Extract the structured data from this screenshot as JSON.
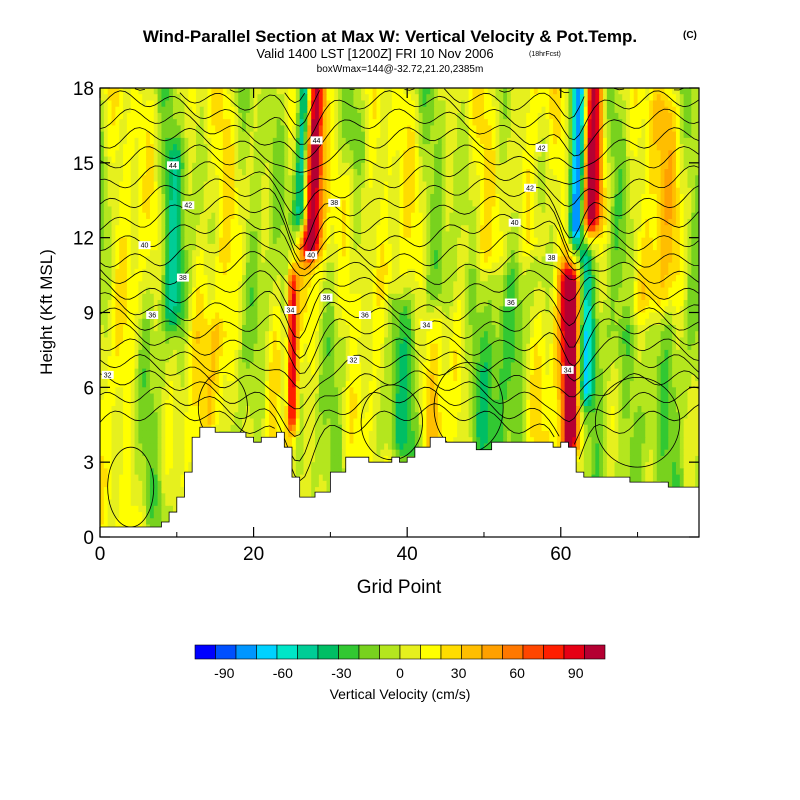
{
  "chart_data": {
    "type": "heatmap",
    "title": "Wind-Parallel Section at Max W: Vertical Velocity & Pot.Temp.",
    "title_mark": "(C)",
    "subtitle": "Valid 1400 LST [1200Z] FRI 10 Nov 2006",
    "subtitle_note": "(18hrFcst)",
    "subtitle2": "boxWmax=144@-32.72,21.20,2385m",
    "xlabel": "Grid Point",
    "ylabel": "Height (Kft MSL)",
    "xlim": [
      0,
      78
    ],
    "ylim": [
      0,
      18
    ],
    "xticks": [
      "0",
      "20",
      "40",
      "60"
    ],
    "yticks": [
      "0",
      "3",
      "6",
      "9",
      "12",
      "15",
      "18"
    ],
    "colorbar": {
      "label": "Vertical Velocity (cm/s)",
      "ticks": [
        "-90",
        "-60",
        "-30",
        "0",
        "30",
        "60",
        "90"
      ],
      "range": [
        -105,
        105
      ],
      "colors": [
        "#0000ff",
        "#0050ff",
        "#0096ff",
        "#00d2ff",
        "#00e6c8",
        "#00cd96",
        "#00be64",
        "#32c832",
        "#78d21e",
        "#b4e61e",
        "#e6f01e",
        "#ffff00",
        "#ffdc00",
        "#ffbe00",
        "#ffa000",
        "#ff7800",
        "#ff4600",
        "#ff1e00",
        "#e60014",
        "#b40032"
      ]
    },
    "terrain_top": [
      [
        0,
        0.4
      ],
      [
        6,
        0.4
      ],
      [
        8,
        0.6
      ],
      [
        9,
        1.0
      ],
      [
        10,
        1.6
      ],
      [
        11,
        2.6
      ],
      [
        12,
        4.0
      ],
      [
        13,
        4.4
      ],
      [
        14,
        4.4
      ],
      [
        15,
        4.2
      ],
      [
        18,
        4.2
      ],
      [
        19,
        4.0
      ],
      [
        20,
        3.8
      ],
      [
        21,
        4.0
      ],
      [
        23,
        4.2
      ],
      [
        24,
        3.6
      ],
      [
        25,
        2.4
      ],
      [
        26,
        1.6
      ],
      [
        28,
        1.8
      ],
      [
        30,
        2.6
      ],
      [
        32,
        3.2
      ],
      [
        35,
        3.0
      ],
      [
        38,
        3.2
      ],
      [
        39,
        3.0
      ],
      [
        40,
        3.2
      ],
      [
        41,
        3.6
      ],
      [
        43,
        4.0
      ],
      [
        45,
        3.8
      ],
      [
        49,
        3.5
      ],
      [
        51,
        3.8
      ],
      [
        57,
        3.8
      ],
      [
        59,
        3.6
      ],
      [
        60,
        3.8
      ],
      [
        61,
        3.6
      ],
      [
        62,
        2.6
      ],
      [
        63,
        2.4
      ],
      [
        64,
        2.4
      ],
      [
        66,
        2.4
      ],
      [
        69,
        2.2
      ],
      [
        73,
        2.2
      ],
      [
        74,
        2.0
      ],
      [
        78,
        2.0
      ]
    ],
    "vertical_velocity_features": [
      {
        "x": 26.3,
        "sigma_x": 0.7,
        "value": -90,
        "y_range": [
          13,
          18
        ],
        "tilt": 0.08
      },
      {
        "x": 27.5,
        "sigma_x": 0.9,
        "value": 110,
        "y_range": [
          12,
          18
        ],
        "tilt": 0.1
      },
      {
        "x": 25.0,
        "sigma_x": 0.5,
        "value": 90,
        "y_range": [
          5,
          10
        ],
        "tilt": 0
      },
      {
        "x": 24.3,
        "sigma_x": 0.5,
        "value": -25,
        "y_range": [
          5,
          10
        ],
        "tilt": 0
      },
      {
        "x": 62.0,
        "sigma_x": 0.7,
        "value": -100,
        "y_range": [
          12.5,
          18
        ],
        "tilt": 0.08
      },
      {
        "x": 64.0,
        "sigma_x": 0.9,
        "value": 100,
        "y_range": [
          13,
          18
        ],
        "tilt": 0.06
      },
      {
        "x": 61.2,
        "sigma_x": 0.9,
        "value": 110,
        "y_range": [
          4,
          10
        ],
        "tilt": 0
      },
      {
        "x": 63.2,
        "sigma_x": 0.7,
        "value": -55,
        "y_range": [
          6,
          11
        ],
        "tilt": 0
      },
      {
        "x": 15.5,
        "sigma_x": 1.2,
        "value": 28,
        "y_range": [
          5,
          8
        ],
        "tilt": 0
      },
      {
        "x": 43.5,
        "sigma_x": 1.2,
        "value": 28,
        "y_range": [
          3.5,
          8.5
        ],
        "tilt": 0
      },
      {
        "x": 33,
        "sigma_x": 1.5,
        "value": 20,
        "y_range": [
          9,
          14
        ],
        "tilt": 0
      },
      {
        "x": 9.5,
        "sigma_x": 1.0,
        "value": -30,
        "y_range": [
          9,
          15
        ],
        "tilt": 0
      },
      {
        "x": 38.5,
        "sigma_x": 1.5,
        "value": -28,
        "y_range": [
          4,
          9
        ],
        "tilt": 0
      },
      {
        "x": 50,
        "sigma_x": 2.5,
        "value": -25,
        "y_range": [
          4,
          10
        ],
        "tilt": 0
      },
      {
        "x": 70,
        "sigma_x": 2.5,
        "value": -25,
        "y_range": [
          2,
          8
        ],
        "tilt": 0
      },
      {
        "x": 56.5,
        "sigma_x": 1.2,
        "value": 25,
        "y_range": [
          12,
          18
        ],
        "tilt": 0
      },
      {
        "x": 73,
        "sigma_x": 1.5,
        "value": 20,
        "y_range": [
          10,
          17
        ],
        "tilt": 0
      }
    ],
    "pot_temp_contour_labels": [
      {
        "text": "44",
        "x": 9.5,
        "y": 14.9
      },
      {
        "text": "42",
        "x": 11.5,
        "y": 13.3
      },
      {
        "text": "40",
        "x": 5.8,
        "y": 11.7
      },
      {
        "text": "38",
        "x": 10.8,
        "y": 10.4
      },
      {
        "text": "36",
        "x": 6.8,
        "y": 8.9
      },
      {
        "text": "32",
        "x": 1.0,
        "y": 6.5
      },
      {
        "text": "44",
        "x": 28.2,
        "y": 15.9
      },
      {
        "text": "38",
        "x": 30.5,
        "y": 13.4
      },
      {
        "text": "40",
        "x": 27.5,
        "y": 11.3
      },
      {
        "text": "36",
        "x": 29.5,
        "y": 9.6
      },
      {
        "text": "34",
        "x": 24.8,
        "y": 9.1
      },
      {
        "text": "36",
        "x": 34.5,
        "y": 8.9
      },
      {
        "text": "34",
        "x": 42.5,
        "y": 8.5
      },
      {
        "text": "32",
        "x": 33.0,
        "y": 7.1
      },
      {
        "text": "42",
        "x": 57.5,
        "y": 15.6
      },
      {
        "text": "42",
        "x": 56.0,
        "y": 14.0
      },
      {
        "text": "40",
        "x": 54.0,
        "y": 12.6
      },
      {
        "text": "38",
        "x": 58.8,
        "y": 11.2
      },
      {
        "text": "36",
        "x": 53.5,
        "y": 9.4
      },
      {
        "text": "34",
        "x": 60.9,
        "y": 6.7
      }
    ]
  }
}
